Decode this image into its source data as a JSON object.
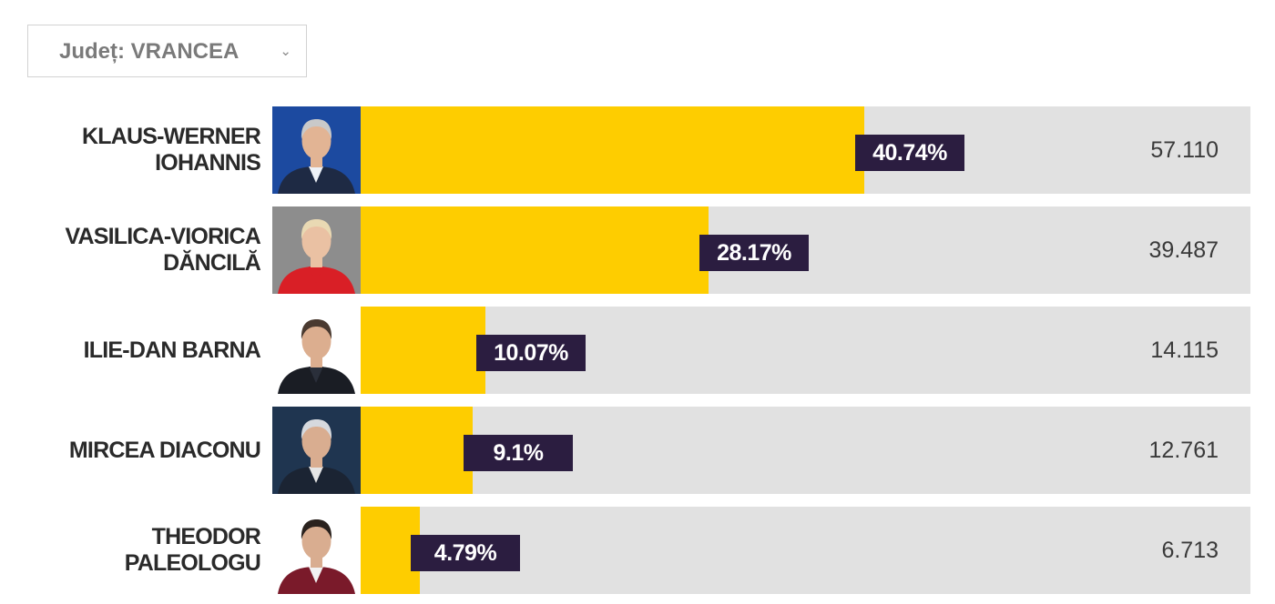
{
  "filter": {
    "label": "Județ: VRANCEA",
    "chevron": "⌄"
  },
  "chart_data": {
    "type": "bar",
    "orientation": "horizontal",
    "xlim": [
      0,
      72
    ],
    "candidates": [
      {
        "name": "KLAUS-WERNER\nIOHANNIS",
        "percent": 40.74,
        "percent_label": "40.74%",
        "votes": "57.110",
        "photo_colors": {
          "bg": "#1c4aa0",
          "suit": "#1e2a44",
          "skin": "#e2b494",
          "hair": "#c9c9c9",
          "shirt": "#eef2f8"
        }
      },
      {
        "name": "VASILICA-VIORICA\nDĂNCILĂ",
        "percent": 28.17,
        "percent_label": "28.17%",
        "votes": "39.487",
        "photo_colors": {
          "bg": "#8d8d8d",
          "suit": "#d91f26",
          "skin": "#eac1a3",
          "hair": "#e9d9b3",
          "shirt": "#d91f26"
        }
      },
      {
        "name": "ILIE-DAN BARNA",
        "percent": 10.07,
        "percent_label": "10.07%",
        "votes": "14.115",
        "photo_colors": {
          "bg": "#ffffff",
          "suit": "#1a1d24",
          "skin": "#dcae8f",
          "hair": "#4a3a30",
          "shirt": "#2a2f3a"
        }
      },
      {
        "name": "MIRCEA DIACONU",
        "percent": 9.1,
        "percent_label": "9.1%",
        "votes": "12.761",
        "photo_colors": {
          "bg": "#1f3550",
          "suit": "#1b2433",
          "skin": "#d9ad90",
          "hair": "#d6d9de",
          "shirt": "#e6e6e6"
        }
      },
      {
        "name": "THEODOR\nPALEOLOGU",
        "percent": 4.79,
        "percent_label": "4.79%",
        "votes": "6.713",
        "photo_colors": {
          "bg": "#ffffff",
          "suit": "#7a1a2a",
          "skin": "#d9ad90",
          "hair": "#2a221e",
          "shirt": "#f2f2f2"
        }
      }
    ]
  },
  "colors": {
    "bar_fill": "#fecd00",
    "track": "#e1e1e1",
    "badge": "#2b1d40",
    "badge_text": "#ffffff"
  }
}
